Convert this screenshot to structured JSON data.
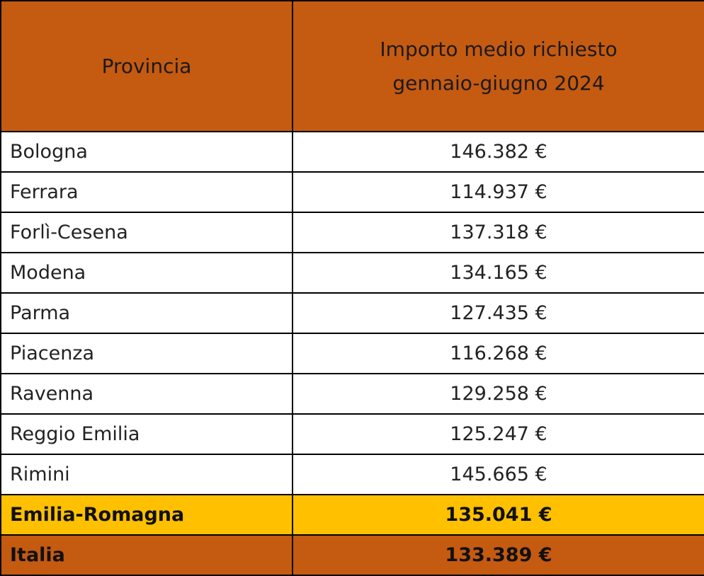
{
  "chart_data": {
    "type": "table",
    "columns": [
      "Provincia",
      "Importo medio richiesto gennaio-giugno 2024"
    ],
    "header_lines": {
      "col1": [
        "Provincia"
      ],
      "col2": [
        "Importo medio richiesto",
        "gennaio-giugno 2024"
      ]
    },
    "rows": [
      {
        "name": "Bologna",
        "value": 146382,
        "label": "146.382 €"
      },
      {
        "name": "Ferrara",
        "value": 114937,
        "label": "114.937 €"
      },
      {
        "name": "Forlì-Cesena",
        "value": 137318,
        "label": "137.318 €"
      },
      {
        "name": "Modena",
        "value": 134165,
        "label": "134.165 €"
      },
      {
        "name": "Parma",
        "value": 127435,
        "label": "127.435 €"
      },
      {
        "name": "Piacenza",
        "value": 116268,
        "label": "116.268 €"
      },
      {
        "name": "Ravenna",
        "value": 129258,
        "label": "129.258 €"
      },
      {
        "name": "Reggio Emilia",
        "value": 125247,
        "label": "125.247 €"
      },
      {
        "name": "Rimini",
        "value": 145665,
        "label": "145.665 €"
      }
    ],
    "region_total": {
      "name": "Emilia-Romagna",
      "value": 135041,
      "label": "135.041 €"
    },
    "country_total": {
      "name": "Italia",
      "value": 133389,
      "label": "133.389 €"
    },
    "unit": "€"
  },
  "colors": {
    "header_background": "#c55a11",
    "region_row_background": "#ffc000",
    "country_row_background": "#c55a11",
    "border": "#000000"
  }
}
